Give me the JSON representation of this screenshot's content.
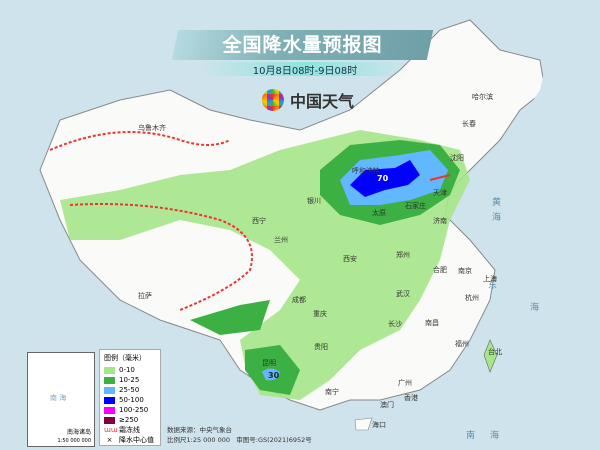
{
  "title": "全国降水量预报图",
  "subtitle": "10月8日08时-9日08时",
  "brand": "中国天气",
  "legend": {
    "title": "图例（毫米）",
    "items": [
      {
        "label": "0-10",
        "color": "#a6e58a"
      },
      {
        "label": "10-25",
        "color": "#3cb043"
      },
      {
        "label": "25-50",
        "color": "#61b8ff"
      },
      {
        "label": "50-100",
        "color": "#0000fe"
      },
      {
        "label": "100-250",
        "color": "#fa00fa"
      },
      {
        "label": "≥250",
        "color": "#800040"
      }
    ],
    "frost_line": "霜冻线",
    "center_value": "降水中心值"
  },
  "source": "数据来源：中央气象台",
  "scale": "比例尺1:25 000 000",
  "approval": "审图号:GS(2021)6952号",
  "inset": {
    "title": "南海诸岛",
    "scale": "1:50 000 000",
    "sea": "南 海"
  },
  "centers": [
    "70",
    "30"
  ],
  "sea_labels": [
    "黄",
    "海",
    "东",
    "海",
    "南",
    "海"
  ],
  "cities": [
    "乌鲁木齐",
    "哈尔滨",
    "长春",
    "沈阳",
    "呼和浩特",
    "天津",
    "石家庄",
    "太原",
    "济南",
    "银川",
    "西宁",
    "兰州",
    "西安",
    "郑州",
    "合肥",
    "南京",
    "上海",
    "武汉",
    "杭州",
    "成都",
    "拉萨",
    "重庆",
    "长沙",
    "南昌",
    "贵阳",
    "福州",
    "台北",
    "昆明",
    "南宁",
    "广州",
    "香港",
    "澳门",
    "海口"
  ]
}
